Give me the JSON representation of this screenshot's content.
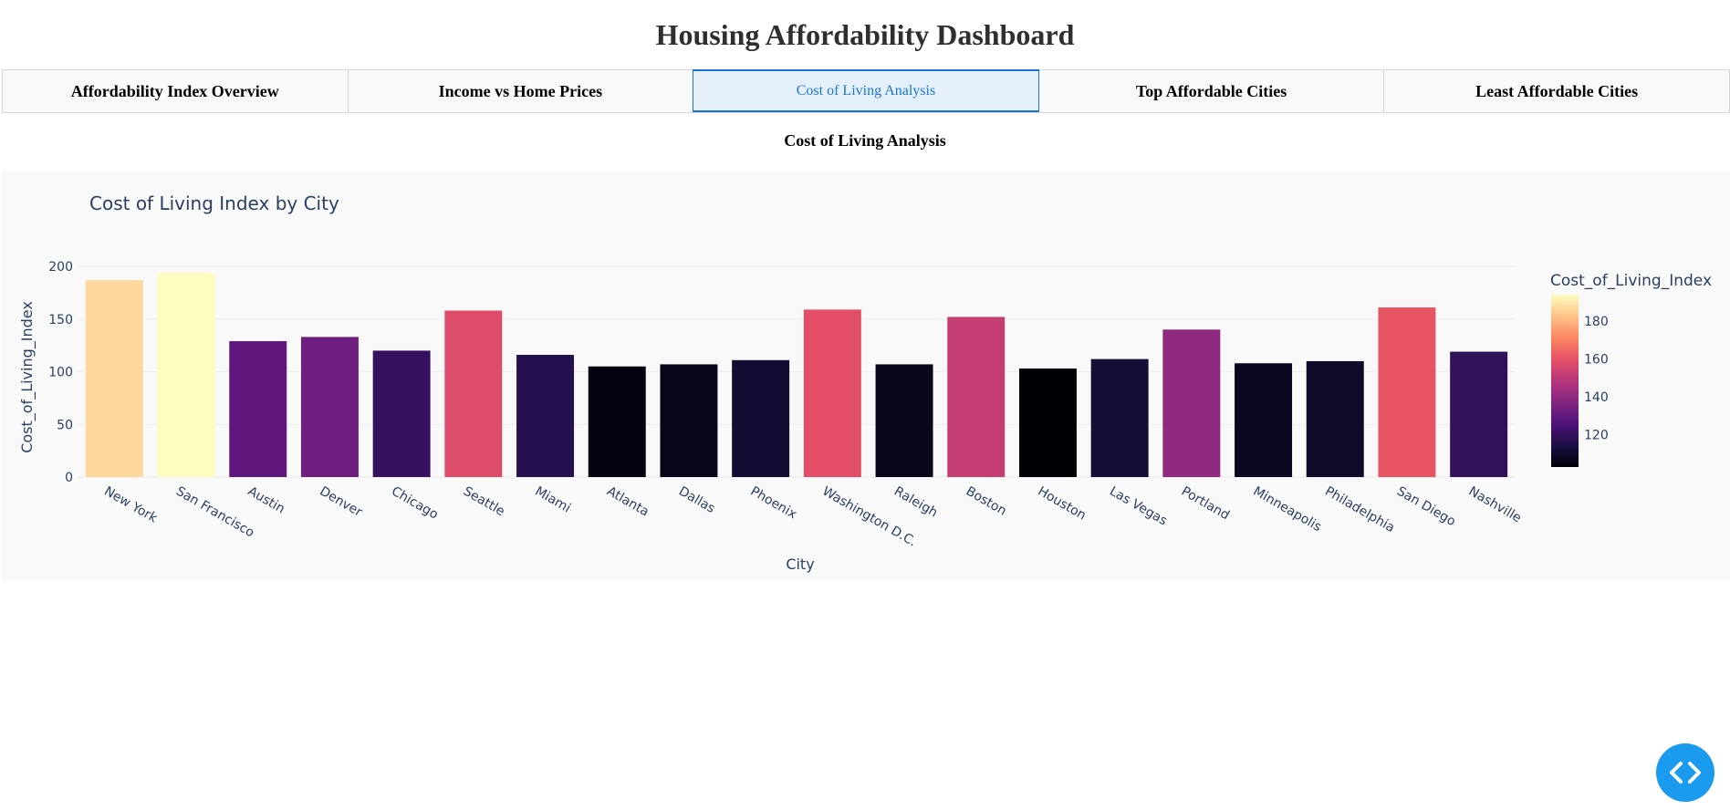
{
  "header": {
    "title": "Housing Affordability Dashboard"
  },
  "tabs": [
    {
      "label": "Affordability Index Overview",
      "selected": false
    },
    {
      "label": "Income vs Home Prices",
      "selected": false
    },
    {
      "label": "Cost of Living Analysis",
      "selected": true
    },
    {
      "label": "Top Affordable Cities",
      "selected": false
    },
    {
      "label": "Least Affordable Cities",
      "selected": false
    }
  ],
  "section": {
    "title": "Cost of Living Analysis"
  },
  "colors": {
    "accent": "#1975d2",
    "fab": "#1a9bf0",
    "axis_text": "#2a3f5f"
  },
  "fab": {
    "icon": "code-brackets-icon"
  },
  "chart_data": {
    "type": "bar",
    "title": "Cost of Living Index by City",
    "xlabel": "City",
    "ylabel": "Cost_of_Living_Index",
    "categories": [
      "New York",
      "San Francisco",
      "Austin",
      "Denver",
      "Chicago",
      "Seattle",
      "Miami",
      "Atlanta",
      "Dallas",
      "Phoenix",
      "Washington D.C.",
      "Raleigh",
      "Boston",
      "Houston",
      "Las Vegas",
      "Portland",
      "Minneapolis",
      "Philadelphia",
      "San Diego",
      "Nashville"
    ],
    "values": [
      187,
      194,
      129,
      133,
      120,
      158,
      116,
      105,
      107,
      111,
      159,
      107,
      152,
      103,
      112,
      140,
      108,
      110,
      161,
      119
    ],
    "ylim": [
      0,
      200
    ],
    "yticks": [
      0,
      50,
      100,
      150,
      200
    ],
    "colorbar": {
      "title": "Cost_of_Living_Index",
      "ticks": [
        120,
        140,
        160,
        180
      ],
      "colorscale": "magma"
    },
    "grid": true,
    "legend": "right"
  }
}
